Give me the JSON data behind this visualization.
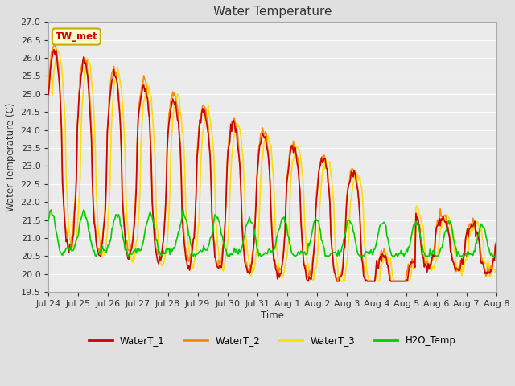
{
  "title": "Water Temperature",
  "ylabel": "Water Temperature (C)",
  "xlabel": "Time",
  "annotation": "TW_met",
  "annotation_color": "#cc0000",
  "annotation_bg": "#ffffcc",
  "annotation_border": "#ccaa00",
  "ylim": [
    19.5,
    27.0
  ],
  "yticks": [
    19.5,
    20.0,
    20.5,
    21.0,
    21.5,
    22.0,
    22.5,
    23.0,
    23.5,
    24.0,
    24.5,
    25.0,
    25.5,
    26.0,
    26.5,
    27.0
  ],
  "bg_color": "#e0e0e0",
  "plot_bg": "#ebebeb",
  "grid_color": "#ffffff",
  "colors": {
    "WaterT_1": "#cc0000",
    "WaterT_2": "#ff8800",
    "WaterT_3": "#ffdd00",
    "H2O_Temp": "#00cc00"
  },
  "linewidths": {
    "WaterT_1": 1.2,
    "WaterT_2": 1.2,
    "WaterT_3": 1.2,
    "H2O_Temp": 1.2
  },
  "xtick_labels": [
    "Jul 24",
    "Jul 25",
    "Jul 26",
    "Jul 27",
    "Jul 28",
    "Jul 29",
    "Jul 30",
    "Jul 31",
    "Aug 1",
    "Aug 2",
    "Aug 3",
    "Aug 4",
    "Aug 5",
    "Aug 6",
    "Aug 7",
    "Aug 8"
  ],
  "n_points": 480
}
